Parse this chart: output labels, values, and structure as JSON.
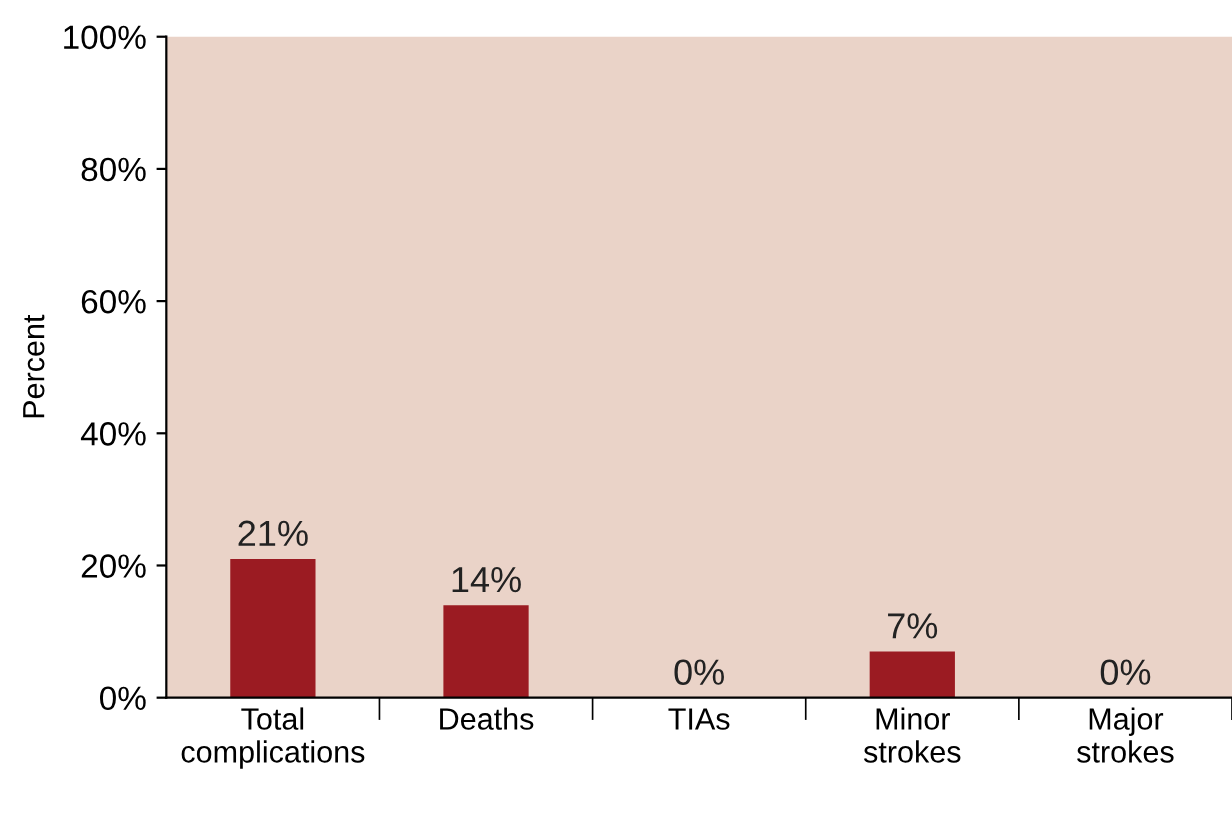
{
  "chart_data": {
    "type": "bar",
    "ylabel": "Percent",
    "categories": [
      "Total\ncomplications",
      "Deaths",
      "TIAs",
      "Minor\nstrokes",
      "Major\nstrokes"
    ],
    "values": [
      21,
      14,
      0,
      7,
      0
    ],
    "color": "#9b1b22",
    "value_labels": [
      "21%",
      "14%",
      "0%",
      "7%",
      "0%"
    ],
    "ylim": [
      0,
      100
    ],
    "yticks": [
      {
        "value": 0,
        "label": "0%"
      },
      {
        "value": 20,
        "label": "20%"
      },
      {
        "value": 40,
        "label": "40%"
      },
      {
        "value": 60,
        "label": "60%"
      },
      {
        "value": 80,
        "label": "80%"
      },
      {
        "value": 100,
        "label": "100%"
      }
    ],
    "grid": false,
    "legend": false
  }
}
